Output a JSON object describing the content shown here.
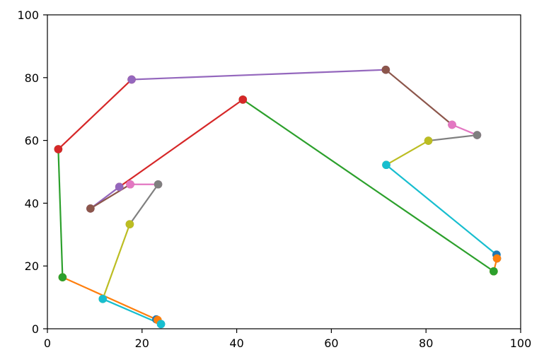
{
  "chart_data": {
    "type": "line",
    "title": "",
    "xlabel": "",
    "ylabel": "",
    "xlim": [
      0,
      100
    ],
    "ylim": [
      0,
      100
    ],
    "grid": false,
    "x_ticks": [
      "0",
      "20",
      "40",
      "60",
      "80",
      "100"
    ],
    "y_ticks": [
      "0",
      "20",
      "40",
      "60",
      "80",
      "100"
    ],
    "x_tick_values": [
      0,
      20,
      40,
      60,
      80,
      100
    ],
    "y_tick_values": [
      0,
      20,
      40,
      60,
      80,
      100
    ],
    "series": [
      {
        "color": "#1f77b4",
        "points": [
          [
            24.0,
            1.5
          ],
          [
            23.0,
            3.0
          ]
        ]
      },
      {
        "color": "#ff7f0e",
        "points": [
          [
            23.3,
            2.8
          ],
          [
            3.2,
            16.4
          ]
        ]
      },
      {
        "color": "#2ca02c",
        "points": [
          [
            3.2,
            16.4
          ],
          [
            2.3,
            57.2
          ]
        ]
      },
      {
        "color": "#d62728",
        "points": [
          [
            2.3,
            57.2
          ],
          [
            17.8,
            79.4
          ]
        ]
      },
      {
        "color": "#9467bd",
        "points": [
          [
            17.8,
            79.4
          ],
          [
            71.5,
            82.5
          ]
        ]
      },
      {
        "color": "#8c564b",
        "points": [
          [
            71.5,
            82.5
          ],
          [
            85.5,
            65.0
          ]
        ]
      },
      {
        "color": "#e377c2",
        "points": [
          [
            85.5,
            65.0
          ],
          [
            90.8,
            61.7
          ]
        ]
      },
      {
        "color": "#7f7f7f",
        "points": [
          [
            90.8,
            61.7
          ],
          [
            80.5,
            59.9
          ]
        ]
      },
      {
        "color": "#bcbd22",
        "points": [
          [
            80.5,
            59.9
          ],
          [
            71.6,
            52.2
          ]
        ]
      },
      {
        "color": "#17becf",
        "points": [
          [
            71.6,
            52.2
          ],
          [
            94.9,
            23.6
          ]
        ]
      },
      {
        "color": "#1f77b4",
        "points": [
          [
            94.9,
            23.6
          ],
          [
            95.0,
            22.4
          ]
        ]
      },
      {
        "color": "#ff7f0e",
        "points": [
          [
            95.0,
            22.4
          ],
          [
            94.3,
            18.3
          ]
        ]
      },
      {
        "color": "#2ca02c",
        "points": [
          [
            94.3,
            18.3
          ],
          [
            41.3,
            73.0
          ]
        ]
      },
      {
        "color": "#d62728",
        "points": [
          [
            41.3,
            73.0
          ],
          [
            15.2,
            45.2
          ]
        ]
      },
      {
        "color": "#9467bd",
        "points": [
          [
            15.2,
            45.2
          ],
          [
            9.1,
            38.3
          ]
        ]
      },
      {
        "color": "#8c564b",
        "points": [
          [
            9.1,
            38.3
          ],
          [
            17.5,
            46.0
          ]
        ]
      },
      {
        "color": "#e377c2",
        "points": [
          [
            17.5,
            46.0
          ],
          [
            23.4,
            46.0
          ]
        ]
      },
      {
        "color": "#7f7f7f",
        "points": [
          [
            23.4,
            46.0
          ],
          [
            17.4,
            33.3
          ]
        ]
      },
      {
        "color": "#bcbd22",
        "points": [
          [
            17.4,
            33.3
          ],
          [
            11.7,
            9.5
          ]
        ]
      },
      {
        "color": "#17becf",
        "points": [
          [
            11.7,
            9.5
          ],
          [
            24.0,
            1.5
          ]
        ]
      }
    ]
  }
}
